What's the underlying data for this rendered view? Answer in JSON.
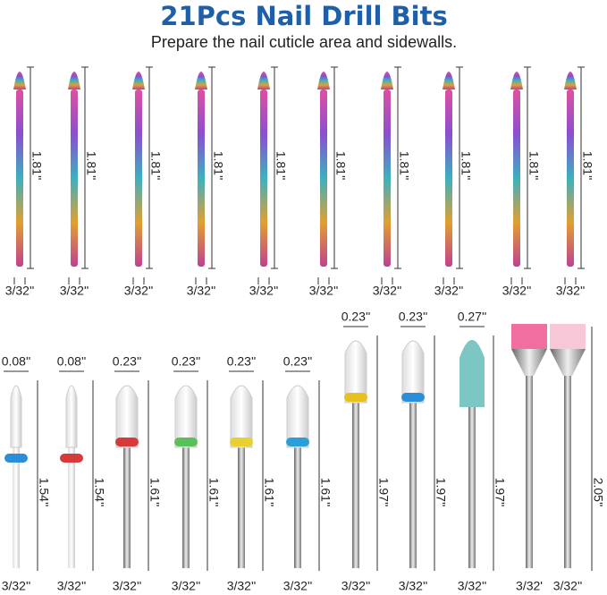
{
  "header": {
    "title": "21Pcs Nail Drill Bits",
    "subtitle": "Prepare the nail cuticle area and sidewalls."
  },
  "top_row": {
    "bits": [
      {
        "length": "1.81''",
        "shank": "3/32''"
      },
      {
        "length": "1.81''",
        "shank": "3/32''"
      },
      {
        "length": "1.81''",
        "shank": "3/32''"
      },
      {
        "length": "1.81''",
        "shank": "3/32''"
      },
      {
        "length": "1.81''",
        "shank": "3/32''"
      },
      {
        "length": "1.81''",
        "shank": "3/32''"
      },
      {
        "length": "1.81''",
        "shank": "3/32''"
      },
      {
        "length": "1.81''",
        "shank": "3/32''"
      },
      {
        "length": "1.81''",
        "shank": "3/32''"
      },
      {
        "length": "1.81''",
        "shank": "3/32''"
      }
    ]
  },
  "bottom_row": {
    "bits": [
      {
        "head": "0.08''",
        "length": "1.54''",
        "shank": "3/32''"
      },
      {
        "head": "0.08''",
        "length": "1.54''",
        "shank": "3/32''"
      },
      {
        "head": "0.23''",
        "length": "1.61''",
        "shank": "3/32''"
      },
      {
        "head": "0.23''",
        "length": "1.61''",
        "shank": "3/32''"
      },
      {
        "head": "0.23''",
        "length": "1.61''",
        "shank": "3/32''"
      },
      {
        "head": "0.23''",
        "length": "1.61''",
        "shank": "3/32''"
      },
      {
        "head": "0.23''",
        "length": "1.97''",
        "shank": "3/32''"
      },
      {
        "head": "0.23''",
        "length": "1.97''",
        "shank": "3/32''"
      },
      {
        "head": "0.27''",
        "length": "1.97''",
        "shank": "3/32''"
      }
    ],
    "brush_length": "2.05''",
    "brushes": [
      {
        "shank": "3/32'"
      },
      {
        "shank": "3/32''"
      }
    ]
  }
}
